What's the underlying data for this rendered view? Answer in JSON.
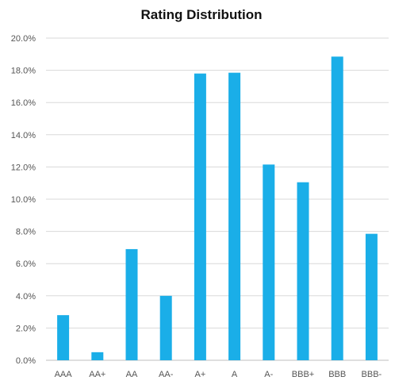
{
  "chart_data": {
    "type": "bar",
    "title": "Rating Distribution",
    "xlabel": "",
    "ylabel": "",
    "categories": [
      "AAA",
      "AA+",
      "AA",
      "AA-",
      "A+",
      "A",
      "A-",
      "BBB+",
      "BBB",
      "BBB-"
    ],
    "values": [
      2.8,
      0.5,
      6.9,
      4.0,
      17.8,
      17.85,
      12.15,
      11.05,
      18.85,
      7.85
    ],
    "ylim": [
      0,
      20
    ],
    "yticks": [
      0,
      2,
      4,
      6,
      8,
      10,
      12,
      14,
      16,
      18,
      20
    ],
    "ytick_labels": [
      "0.0%",
      "2.0%",
      "4.0%",
      "6.0%",
      "8.0%",
      "10.0%",
      "12.0%",
      "14.0%",
      "16.0%",
      "18.0%",
      "20.0%"
    ],
    "grid": true,
    "legend": "none",
    "bar_color": "#1aaee8",
    "grid_color": "#d9d9d9",
    "text_color": "#555555"
  }
}
